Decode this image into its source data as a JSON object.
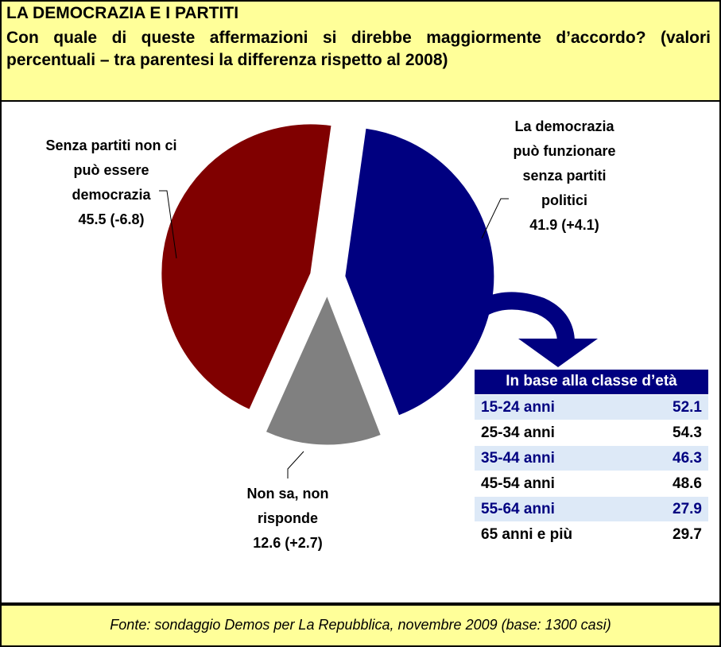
{
  "chart_data": {
    "type": "pie",
    "title": "LA DEMOCRAZIA E I PARTITI",
    "subtitle": "Con quale di queste affermazioni si direbbe maggiormente d’accordo? (valori percentuali – tra parentesi la differenza rispetto al 2008)",
    "categories": [
      "La democrazia può funzionare senza partiti politici",
      "Non sa, non risponde",
      "Senza partiti non ci può essere democrazia"
    ],
    "values": [
      41.9,
      12.6,
      45.5
    ],
    "changes": [
      {
        "value": 4.1,
        "label": "(+4.1)"
      },
      {
        "value": 2.7,
        "label": "(+2.7)"
      },
      {
        "value": -6.8,
        "label": "(-6.8)"
      }
    ],
    "colors": [
      "#000080",
      "#808080",
      "#800000"
    ]
  },
  "table": {
    "title": "In base alla classe d’età",
    "rows": [
      [
        "15-24 anni",
        "52.1"
      ],
      [
        "25-34 anni",
        "54.3"
      ],
      [
        "35-44 anni",
        "46.3"
      ],
      [
        "45-54 anni",
        "48.6"
      ],
      [
        "55-64 anni",
        "27.9"
      ],
      [
        "65 anni e più",
        "29.7"
      ]
    ]
  },
  "source": "Fonte: sondaggio Demos per La Repubblica, novembre 2009 (base: 1300 casi)"
}
